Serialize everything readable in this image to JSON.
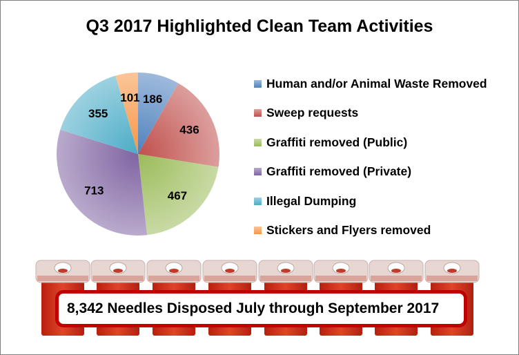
{
  "chart_data": {
    "type": "pie",
    "title": "Q3 2017 Highlighted Clean Team Activities",
    "legend_position": "right",
    "slices": [
      {
        "label": "Human and/or Animal Waste Removed",
        "value": 186,
        "color": "#4f81bd"
      },
      {
        "label": "Sweep requests",
        "value": 436,
        "color": "#c0504d"
      },
      {
        "label": "Graffiti removed (Public)",
        "value": 467,
        "color": "#9bbb59"
      },
      {
        "label": "Graffiti removed (Private)",
        "value": 713,
        "color": "#8064a2"
      },
      {
        "label": "Illegal Dumping",
        "value": 355,
        "color": "#4bacc6"
      },
      {
        "label": "Stickers and Flyers removed",
        "value": 101,
        "color": "#f79646"
      }
    ]
  },
  "banner": {
    "text": "8,342 Needles Disposed July through September 2017"
  }
}
